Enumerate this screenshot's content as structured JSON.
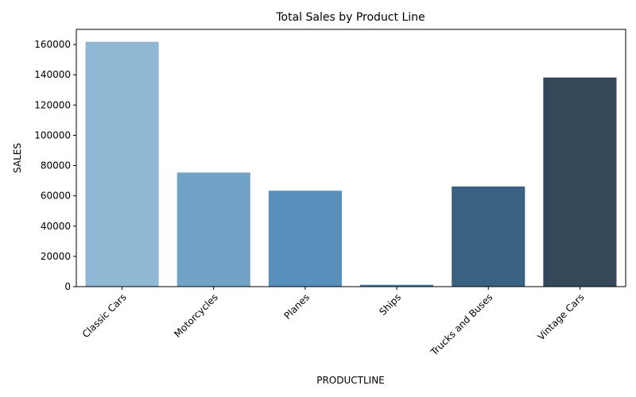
{
  "chart_data": {
    "type": "bar",
    "title": "Total Sales by Product Line",
    "xlabel": "PRODUCTLINE",
    "ylabel": "SALES",
    "categories": [
      "Classic Cars",
      "Motorcycles",
      "Planes",
      "Ships",
      "Trucks and Buses",
      "Vintage Cars"
    ],
    "values": [
      161800,
      75400,
      63400,
      1200,
      66200,
      138200
    ],
    "colors": [
      "#90b8d4",
      "#70a3c6",
      "#5791bb",
      "#457aa0",
      "#3b6180",
      "#354859"
    ],
    "yticks": [
      0,
      20000,
      40000,
      60000,
      80000,
      100000,
      120000,
      140000,
      160000
    ],
    "ylim": [
      0,
      170000
    ],
    "grid": false,
    "legend": "none"
  }
}
